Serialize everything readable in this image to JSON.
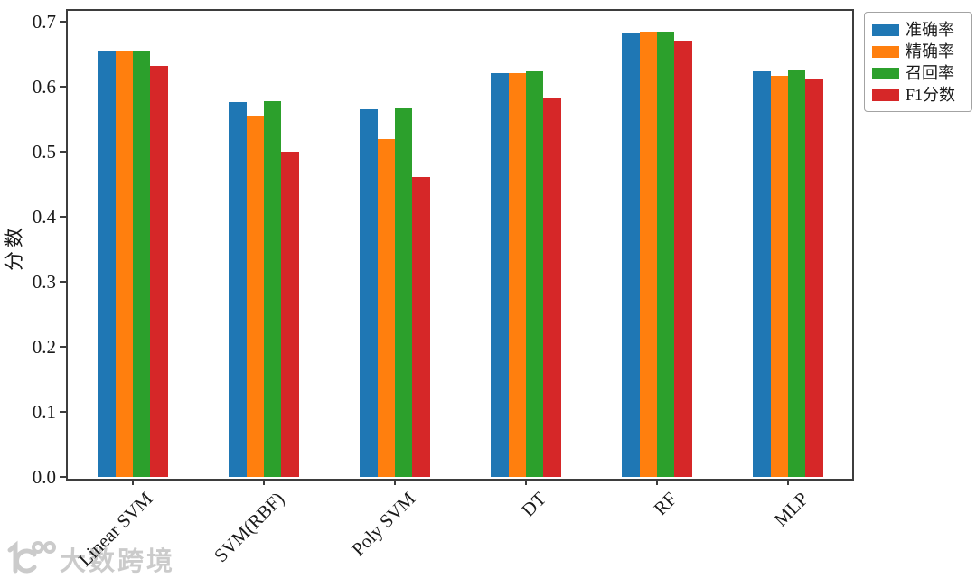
{
  "chart_data": {
    "type": "bar",
    "title": "",
    "xlabel": "",
    "ylabel": "分数",
    "categories": [
      "Linear SVM",
      "SVM(RBF)",
      "Poly SVM",
      "DT",
      "RF",
      "MLP"
    ],
    "series": [
      {
        "name": "准确率",
        "color": "#1f77b4",
        "values": [
          0.654,
          0.577,
          0.566,
          0.621,
          0.683,
          0.624
        ]
      },
      {
        "name": "精确率",
        "color": "#ff7f0e",
        "values": [
          0.654,
          0.556,
          0.52,
          0.622,
          0.685,
          0.617
        ]
      },
      {
        "name": "召回率",
        "color": "#2ca02c",
        "values": [
          0.654,
          0.578,
          0.567,
          0.624,
          0.685,
          0.626
        ]
      },
      {
        "name": "F1分数",
        "color": "#d62728",
        "values": [
          0.632,
          0.5,
          0.462,
          0.584,
          0.671,
          0.613
        ]
      }
    ],
    "ylim": [
      0.0,
      0.72
    ],
    "yticks": [
      "0.0",
      "0.1",
      "0.2",
      "0.3",
      "0.4",
      "0.5",
      "0.6",
      "0.7"
    ],
    "legend_position": "upper right",
    "grid": false
  },
  "watermark": {
    "logo": "dashu-kuajing-logo",
    "text": "大数跨境"
  }
}
